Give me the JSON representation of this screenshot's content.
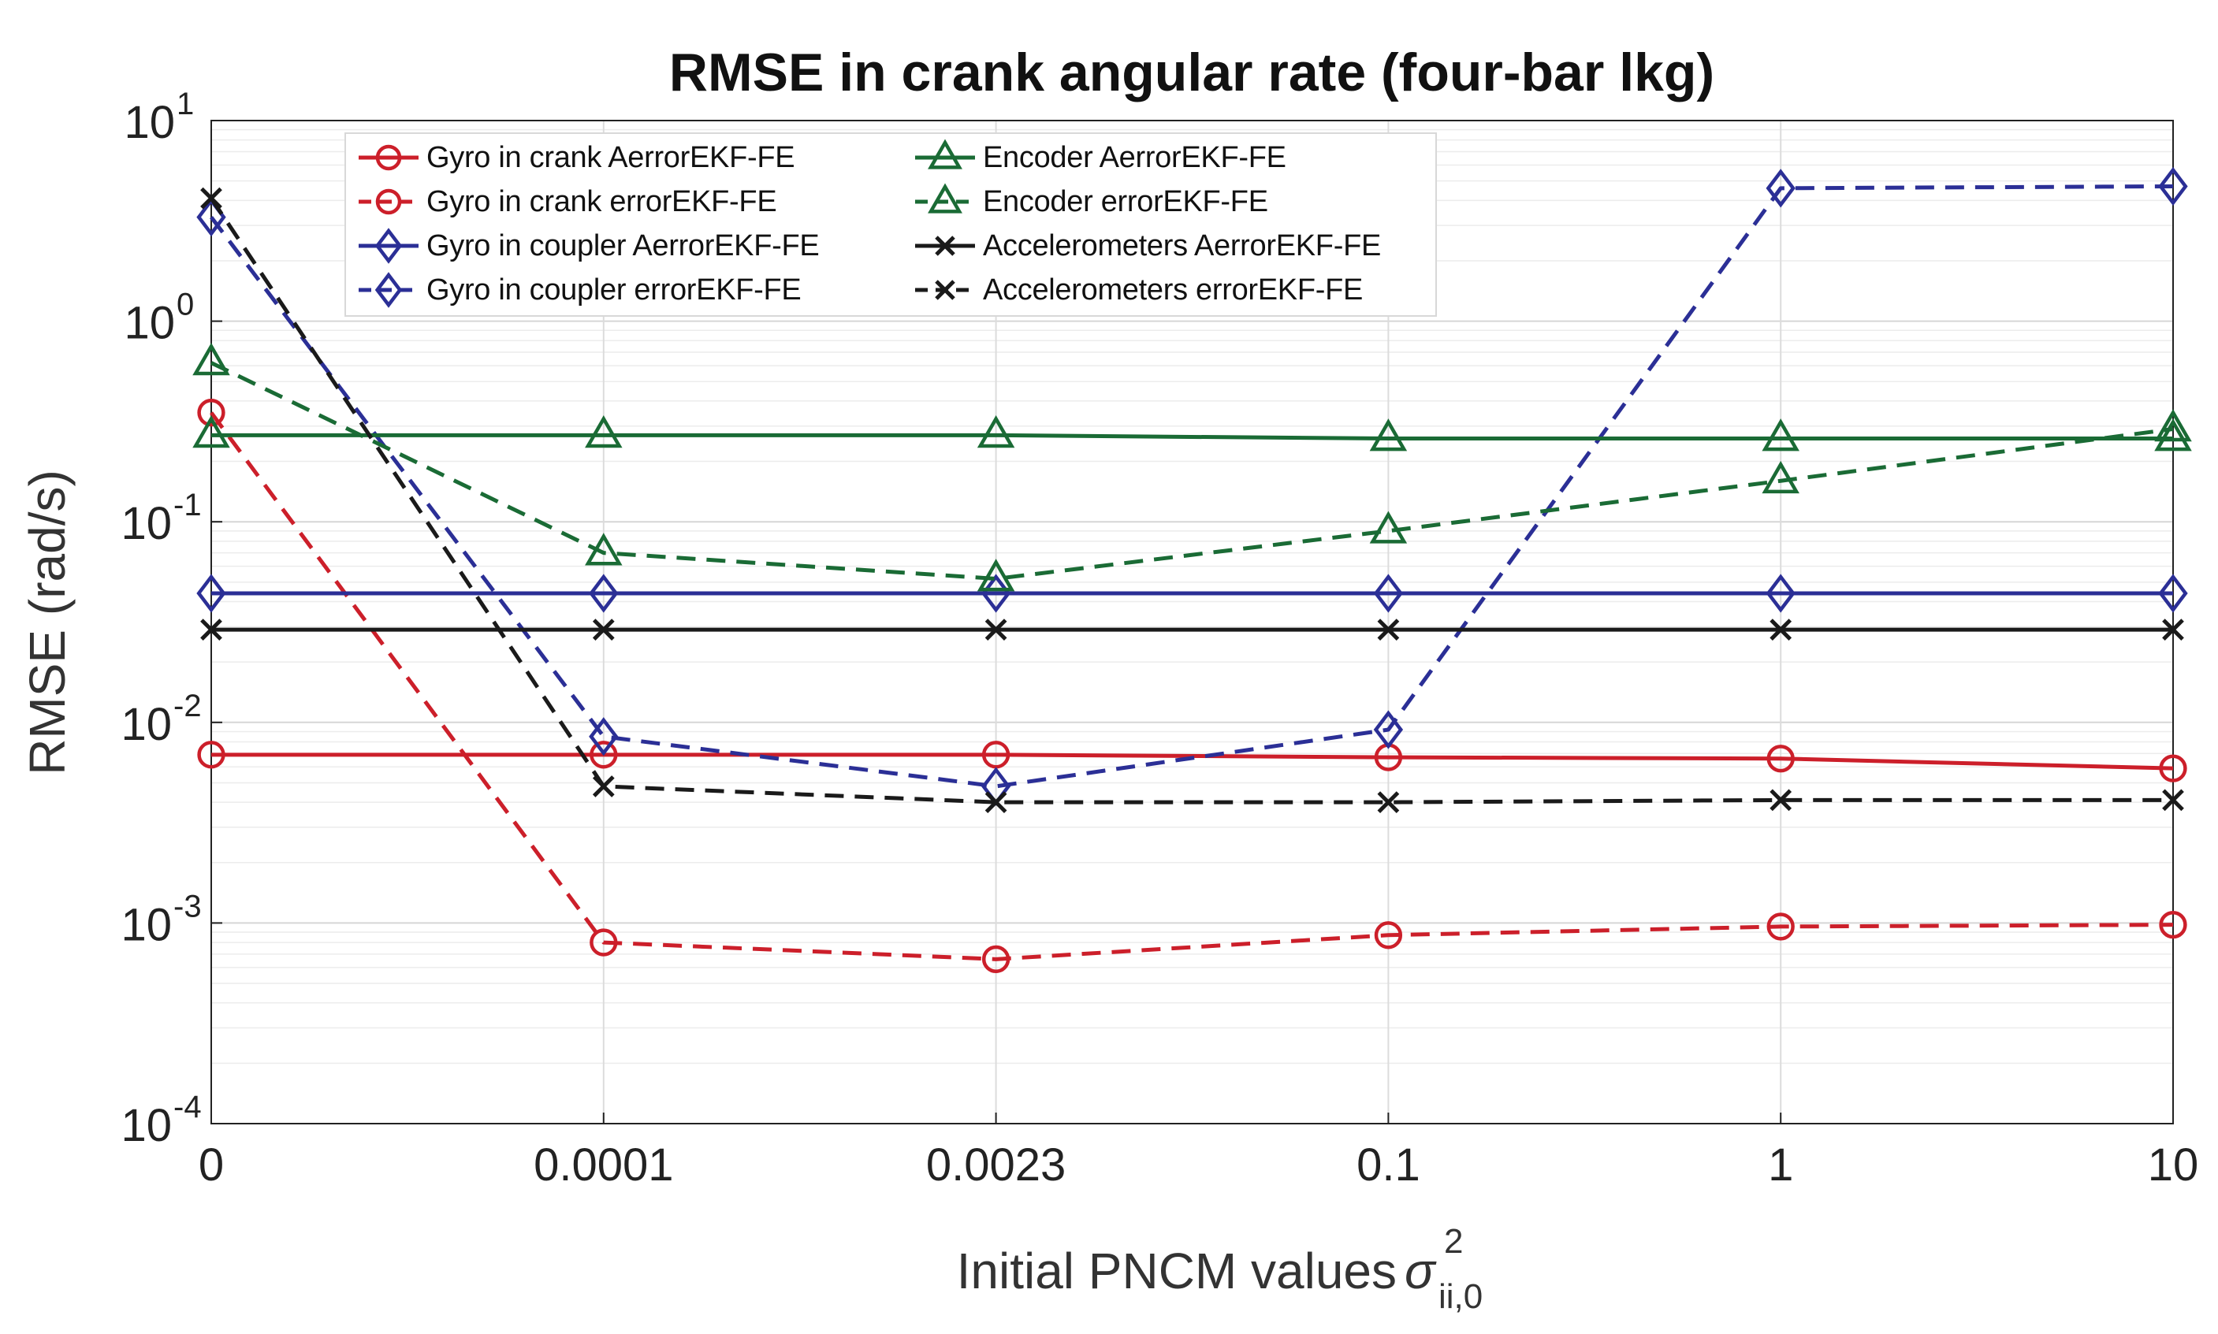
{
  "chart_data": {
    "type": "line",
    "title": "RMSE in crank angular rate (four-bar lkg)",
    "xlabel": "Initial PNCM values",
    "xlabel_symbol": "σ",
    "xlabel_superscript": "2",
    "xlabel_subscript": "ii,0",
    "ylabel": "RMSE (rad/s)",
    "yscale": "log",
    "ylim": [
      0.0001,
      10
    ],
    "y_tick_base": "10",
    "y_tick_exponents": [
      "1",
      "0",
      "-1",
      "-2",
      "-3",
      "-4"
    ],
    "categories": [
      "0",
      "0.0001",
      "0.0023",
      "0.1",
      "1",
      "10"
    ],
    "grid": true,
    "legend_position": "top-left",
    "series": [
      {
        "name": "Gyro in crank AerrorEKF-FE",
        "color": "#cc1f2a",
        "marker": "circle",
        "style": "solid",
        "values": [
          0.0069,
          0.0069,
          0.0069,
          0.0067,
          0.0066,
          0.0059
        ]
      },
      {
        "name": "Gyro in crank errorEKF-FE",
        "color": "#cc1f2a",
        "marker": "circle",
        "style": "dashed",
        "values": [
          0.35,
          0.0008,
          0.00066,
          0.00087,
          0.00096,
          0.00098
        ]
      },
      {
        "name": "Gyro in coupler AerrorEKF-FE",
        "color": "#2b2f96",
        "marker": "diamond",
        "style": "solid",
        "values": [
          0.044,
          0.044,
          0.044,
          0.044,
          0.044,
          0.044
        ]
      },
      {
        "name": "Gyro in coupler errorEKF-FE",
        "color": "#2b2f96",
        "marker": "diamond",
        "style": "dashed",
        "values": [
          3.3,
          0.0085,
          0.0048,
          0.0092,
          4.6,
          4.7
        ]
      },
      {
        "name": "Encoder AerrorEKF-FE",
        "color": "#1a6b35",
        "marker": "triangle",
        "style": "solid",
        "values": [
          0.27,
          0.27,
          0.27,
          0.26,
          0.26,
          0.26
        ]
      },
      {
        "name": "Encoder errorEKF-FE",
        "color": "#1a6b35",
        "marker": "triangle",
        "style": "dashed",
        "values": [
          0.62,
          0.07,
          0.052,
          0.09,
          0.16,
          0.29
        ]
      },
      {
        "name": "Accelerometers AerrorEKF-FE",
        "color": "#1a1a1a",
        "marker": "x",
        "style": "solid",
        "values": [
          0.029,
          0.029,
          0.029,
          0.029,
          0.029,
          0.029
        ]
      },
      {
        "name": "Accelerometers errorEKF-FE",
        "color": "#1a1a1a",
        "marker": "x",
        "style": "dashed",
        "values": [
          4.1,
          0.0048,
          0.004,
          0.004,
          0.0041,
          0.0041
        ]
      }
    ]
  }
}
